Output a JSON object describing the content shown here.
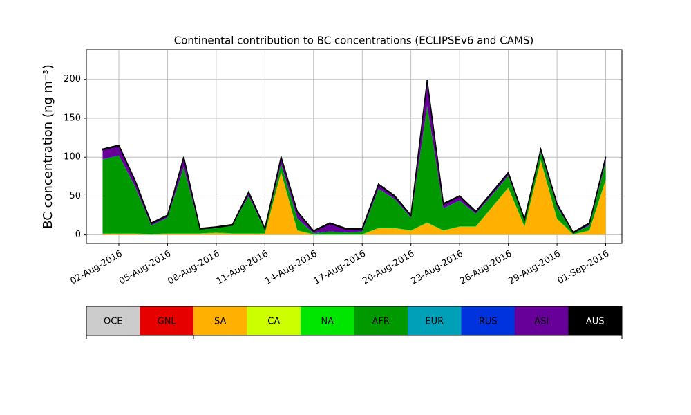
{
  "chart_data": {
    "type": "stacked_area",
    "title": "Continental contribution to BC concentrations (ECLIPSEv6 and CAMS)",
    "y_label": "BC concentration (ng m⁻³)",
    "x": [
      "2016-08-01",
      "2016-08-02",
      "2016-08-03",
      "2016-08-04",
      "2016-08-05",
      "2016-08-06",
      "2016-08-07",
      "2016-08-08",
      "2016-08-09",
      "2016-08-10",
      "2016-08-11",
      "2016-08-12",
      "2016-08-13",
      "2016-08-14",
      "2016-08-15",
      "2016-08-16",
      "2016-08-17",
      "2016-08-18",
      "2016-08-19",
      "2016-08-20",
      "2016-08-21",
      "2016-08-22",
      "2016-08-23",
      "2016-08-24",
      "2016-08-25",
      "2016-08-26",
      "2016-08-27",
      "2016-08-28",
      "2016-08-29",
      "2016-08-30",
      "2016-08-31",
      "2016-09-01"
    ],
    "xlim": [
      "2016-07-31",
      "2016-09-02"
    ],
    "xticks": [
      {
        "value": "2016-08-02",
        "label": "02-Aug-2016"
      },
      {
        "value": "2016-08-05",
        "label": "05-Aug-2016"
      },
      {
        "value": "2016-08-08",
        "label": "08-Aug-2016"
      },
      {
        "value": "2016-08-11",
        "label": "11-Aug-2016"
      },
      {
        "value": "2016-08-14",
        "label": "14-Aug-2016"
      },
      {
        "value": "2016-08-17",
        "label": "17-Aug-2016"
      },
      {
        "value": "2016-08-20",
        "label": "20-Aug-2016"
      },
      {
        "value": "2016-08-23",
        "label": "23-Aug-2016"
      },
      {
        "value": "2016-08-26",
        "label": "26-Aug-2016"
      },
      {
        "value": "2016-08-29",
        "label": "29-Aug-2016"
      },
      {
        "value": "2016-09-01",
        "label": "01-Sep-2016"
      }
    ],
    "ylim": [
      -11,
      238
    ],
    "yticks": [
      0,
      50,
      100,
      150,
      200
    ],
    "grid": true,
    "series": [
      {
        "name": "OCE",
        "color": "#cccccc",
        "values": [
          0.5,
          0.5,
          0.5,
          0.5,
          0.5,
          0.5,
          0.5,
          0.5,
          0.5,
          0.5,
          0.5,
          0.5,
          0.5,
          0.5,
          0.5,
          0.5,
          0.5,
          0.5,
          0.5,
          0.5,
          0.5,
          0.5,
          0.5,
          0.5,
          0.5,
          0.5,
          0.5,
          0.5,
          0.5,
          0.5,
          0.5,
          0.5
        ]
      },
      {
        "name": "GNL",
        "color": "#e60000",
        "values": [
          0,
          0,
          0,
          0,
          0,
          0,
          0,
          0,
          0,
          0,
          0,
          0,
          0,
          0,
          0,
          0,
          0,
          0,
          0,
          0,
          0,
          0,
          0,
          0,
          0,
          0,
          0,
          0,
          0,
          0,
          0,
          0
        ]
      },
      {
        "name": "SA",
        "color": "#ffb000",
        "values": [
          1,
          1,
          1,
          0,
          1,
          1,
          1,
          2,
          1,
          1,
          1,
          80,
          5,
          0,
          0,
          0,
          0,
          8,
          8,
          5,
          15,
          5,
          10,
          10,
          35,
          60,
          10,
          95,
          20,
          0,
          5,
          70
        ]
      },
      {
        "name": "CA",
        "color": "#ccff00",
        "values": [
          0,
          0,
          0,
          0,
          0,
          0,
          0,
          0,
          0,
          0,
          0,
          0,
          0,
          0,
          0,
          0,
          0,
          0,
          0,
          0,
          0,
          0,
          0,
          0,
          0,
          0,
          0,
          0,
          0,
          0,
          0,
          0
        ]
      },
      {
        "name": "NA",
        "color": "#00e600",
        "values": [
          0.5,
          0.5,
          0.5,
          0.5,
          0.5,
          0.5,
          0.5,
          0.5,
          0.5,
          0.5,
          0.5,
          0.5,
          0.5,
          0.5,
          0.5,
          0.5,
          0.5,
          0.5,
          0.5,
          0.5,
          0.5,
          0.5,
          0.5,
          0.5,
          0.5,
          0.5,
          0.5,
          0.5,
          0.5,
          0.5,
          0.5,
          0.5
        ]
      },
      {
        "name": "AFR",
        "color": "#009900",
        "values": [
          95,
          100,
          60,
          11,
          20,
          85,
          5,
          6,
          10,
          48,
          4,
          10,
          15,
          1,
          3,
          2,
          3,
          50,
          37,
          16,
          150,
          28,
          33,
          16,
          15,
          15,
          7,
          10,
          15,
          1,
          6,
          22
        ]
      },
      {
        "name": "EUR",
        "color": "#00a0b8",
        "values": [
          0,
          0,
          0,
          0,
          0,
          0,
          0,
          0,
          0,
          0,
          0,
          0,
          0,
          0,
          0,
          0,
          0,
          0,
          0,
          0,
          0,
          0,
          0,
          0,
          0,
          0,
          0,
          0,
          0,
          0,
          0,
          0
        ]
      },
      {
        "name": "RUS",
        "color": "#0033dd",
        "values": [
          0.5,
          0.5,
          0.5,
          0.5,
          0.5,
          0.5,
          0.5,
          0.5,
          0.5,
          0.5,
          0.5,
          0.5,
          0.5,
          0.5,
          0.5,
          0.5,
          0.5,
          0.5,
          0.5,
          0.5,
          0.5,
          0.5,
          0.5,
          0.5,
          0.5,
          0.5,
          0.5,
          0.5,
          0.5,
          0.5,
          0.5,
          0.5
        ]
      },
      {
        "name": "ASI",
        "color": "#660099",
        "values": [
          12,
          12,
          7,
          2,
          2,
          12,
          0,
          0,
          0,
          4,
          1,
          8,
          8,
          2,
          10,
          4,
          3,
          5,
          3,
          2,
          32,
          5,
          5,
          2,
          3,
          3,
          1,
          3,
          3,
          0,
          2,
          6
        ]
      },
      {
        "name": "AUS",
        "color": "#000000",
        "values": [
          1,
          1,
          1,
          1,
          1,
          1,
          1,
          1,
          1,
          1,
          1,
          1,
          1,
          1,
          1,
          1,
          1,
          1,
          1,
          1,
          1,
          1,
          1,
          1,
          1,
          1,
          1,
          1,
          1,
          1,
          1,
          1
        ]
      }
    ]
  }
}
